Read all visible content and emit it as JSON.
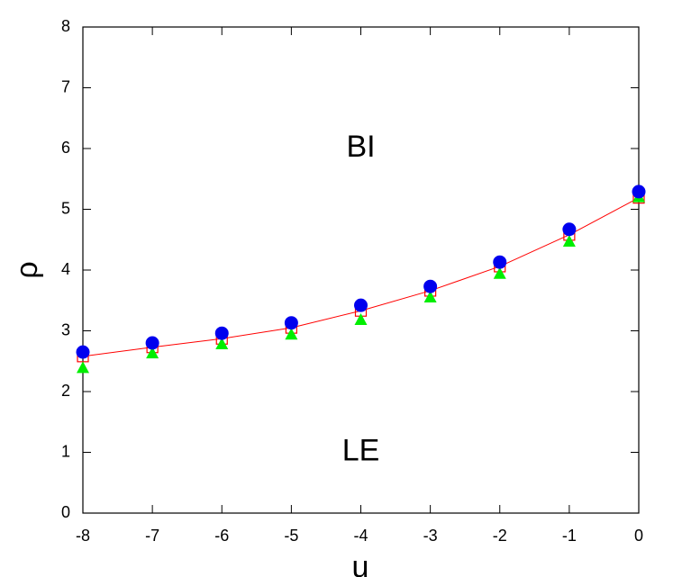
{
  "chart_data": {
    "type": "scatter",
    "x_label": "u",
    "y_label": "ρ",
    "x": [
      -8,
      -7,
      -6,
      -5,
      -4,
      -3,
      -2,
      -1,
      0
    ],
    "series": [
      {
        "color": "#ff0000",
        "marker": "open-square",
        "line": true,
        "values": [
          2.58,
          2.73,
          2.87,
          3.05,
          3.33,
          3.66,
          4.06,
          4.58,
          5.19
        ]
      },
      {
        "color": "#00ee00",
        "marker": "triangle",
        "line": false,
        "values": [
          2.38,
          2.62,
          2.77,
          2.93,
          3.17,
          3.54,
          3.93,
          4.46,
          5.19
        ]
      },
      {
        "color": "#0000ee",
        "marker": "circle",
        "line": false,
        "values": [
          2.65,
          2.8,
          2.96,
          3.13,
          3.42,
          3.73,
          4.13,
          4.67,
          5.29
        ]
      }
    ],
    "annotations": [
      {
        "text": "BI",
        "x": -4,
        "y": 6
      },
      {
        "text": "LE",
        "x": -4,
        "y": 1
      }
    ],
    "xlim": [
      -8,
      0
    ],
    "ylim": [
      0,
      8
    ],
    "xticks": [
      -8,
      -7,
      -6,
      -5,
      -4,
      -3,
      -2,
      -1,
      0
    ],
    "yticks": [
      0,
      1,
      2,
      3,
      4,
      5,
      6,
      7,
      8
    ],
    "grid": false
  }
}
